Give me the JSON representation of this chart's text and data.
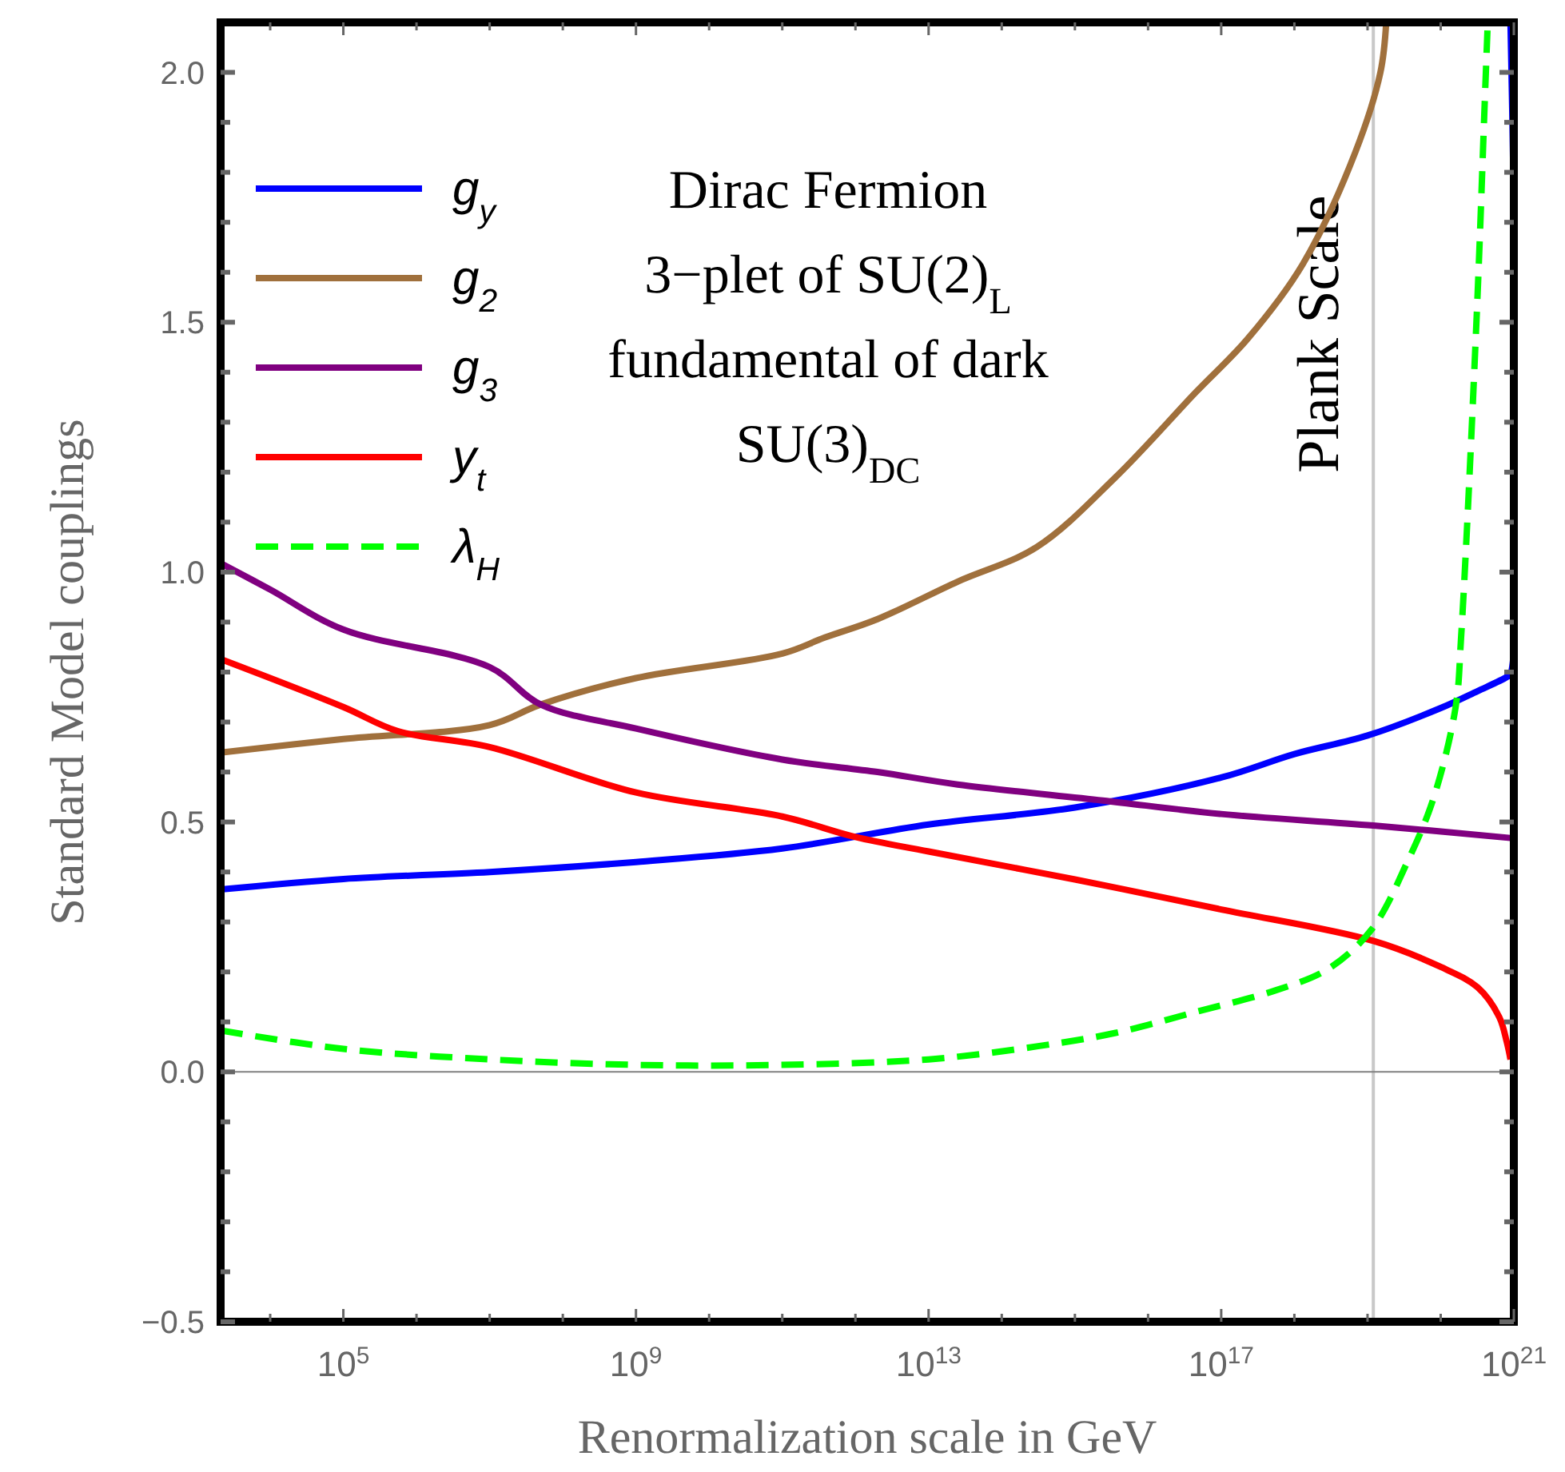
{
  "chart_data": {
    "type": "line",
    "xlabel": "Renormalization scale in GeV",
    "ylabel": "Standard Model couplings",
    "log": "x",
    "xlim": [
      2100,
      1e+21
    ],
    "ylim": [
      -0.5,
      2.1
    ],
    "xticks": [
      {
        "value": 10000.0,
        "label": null
      },
      {
        "value": 100000.0,
        "label": "10$^{5}$"
      },
      {
        "value": 1000000.0,
        "label": null
      },
      {
        "value": 10000000.0,
        "label": null
      },
      {
        "value": 100000000.0,
        "label": null
      },
      {
        "value": 1000000000.0,
        "label": "10$^{9}$"
      },
      {
        "value": 10000000000.0,
        "label": null
      },
      {
        "value": 100000000000.0,
        "label": null
      },
      {
        "value": 1000000000000.0,
        "label": null
      },
      {
        "value": 10000000000000.0,
        "label": "10$^{13}$"
      },
      {
        "value": 100000000000000.0,
        "label": null
      },
      {
        "value": 1000000000000000.0,
        "label": null
      },
      {
        "value": 1e+16,
        "label": null
      },
      {
        "value": 1e+17,
        "label": "10$^{17}$"
      },
      {
        "value": 1e+18,
        "label": null
      },
      {
        "value": 1e+19,
        "label": null
      },
      {
        "value": 1e+20,
        "label": null
      },
      {
        "value": 1e+21,
        "label": "10$^{21}$"
      }
    ],
    "yticks": [
      {
        "value": -0.5,
        "label": "−0.5"
      },
      {
        "value": -0.4,
        "label": null
      },
      {
        "value": -0.3,
        "label": null
      },
      {
        "value": -0.2,
        "label": null
      },
      {
        "value": -0.1,
        "label": null
      },
      {
        "value": 0,
        "label": "0.0"
      },
      {
        "value": 0.1,
        "label": null
      },
      {
        "value": 0.2,
        "label": null
      },
      {
        "value": 0.3,
        "label": null
      },
      {
        "value": 0.4,
        "label": null
      },
      {
        "value": 0.5,
        "label": "0.5"
      },
      {
        "value": 0.6,
        "label": null
      },
      {
        "value": 0.7,
        "label": null
      },
      {
        "value": 0.8,
        "label": null
      },
      {
        "value": 0.9,
        "label": null
      },
      {
        "value": 1.0,
        "label": "1.0"
      },
      {
        "value": 1.1,
        "label": null
      },
      {
        "value": 1.2,
        "label": null
      },
      {
        "value": 1.3,
        "label": null
      },
      {
        "value": 1.4,
        "label": null
      },
      {
        "value": 1.5,
        "label": "1.5"
      },
      {
        "value": 1.6,
        "label": null
      },
      {
        "value": 1.7,
        "label": null
      },
      {
        "value": 1.8,
        "label": null
      },
      {
        "value": 1.9,
        "label": null
      },
      {
        "value": 2.0,
        "label": "2.0"
      }
    ],
    "grid": false,
    "legend": "top left",
    "series": [
      {
        "name": "g$_{y}$",
        "color": "#0000ff",
        "line_style": "solid",
        "x": [
          2100,
          100000.0,
          10000000.0,
          1000000000.0,
          100000000000.0,
          10000000000000.0,
          1000000000000000.0,
          1e+17,
          1e+18,
          1e+19,
          1e+20,
          3.2e+20,
          8e+20,
          9e+20,
          9e+20
        ],
        "values": [
          0.365,
          0.386,
          0.4,
          0.42,
          0.447,
          0.495,
          0.529,
          0.589,
          0.636,
          0.673,
          0.728,
          0.762,
          0.79,
          0.796,
          2.1
        ]
      },
      {
        "name": "g$_{2}$",
        "color": "#a0703c",
        "line_style": "solid",
        "x": [
          2100,
          100000.0,
          10000000.0,
          50000000.0,
          1000000000.0,
          100000000000.0,
          380000000000.0,
          2000000000000.0,
          25000000000000.0,
          300000000000000.0,
          3600000000000000.0,
          4.5e+16,
          2.3e+17,
          1.3e+18,
          6.8e+18,
          1.5e+19,
          1.8e+19
        ],
        "values": [
          0.639,
          0.666,
          0.694,
          0.735,
          0.788,
          0.837,
          0.869,
          0.906,
          0.981,
          1.05,
          1.19,
          1.36,
          1.467,
          1.616,
          1.84,
          2.0,
          2.1
        ]
      },
      {
        "name": "g$_{3}$",
        "color": "#800080",
        "line_style": "solid",
        "x": [
          2100,
          10000.0,
          100000.0,
          10000000.0,
          50000000.0,
          1000000000.0,
          100000000000.0,
          2000000000000.0,
          25000000000000.0,
          2400000000000000.0,
          1e+17,
          1.2e+19,
          9e+20
        ],
        "values": [
          1.018,
          0.965,
          0.885,
          0.81,
          0.735,
          0.687,
          0.625,
          0.6,
          0.575,
          0.543,
          0.516,
          0.493,
          0.468
        ]
      },
      {
        "name": "y$_{t}$",
        "color": "#ff0000",
        "line_style": "solid",
        "x": [
          2100,
          100000.0,
          550000.0,
          10000000.0,
          1000000000.0,
          100000000000.0,
          1000000000000.0,
          10000000000000.0,
          1000000000000000.0,
          1e+17,
          1.2e+19,
          1e+20,
          3.2e+20,
          6.3e+20,
          8e+20,
          9e+20
        ],
        "values": [
          0.826,
          0.73,
          0.682,
          0.65,
          0.559,
          0.511,
          0.47,
          0.441,
          0.385,
          0.325,
          0.262,
          0.21,
          0.169,
          0.11,
          0.06,
          0.025
        ]
      },
      {
        "name": "λ$_{H}$",
        "color": "#00ff00",
        "line_style": "dashed",
        "x": [
          2100,
          100000.0,
          10000000.0,
          1000000000.0,
          100000000000.0,
          10000000000000.0,
          300000000000000.0,
          3600000000000000.0,
          4.5e+16,
          5.5e+17,
          2.9e+18,
          1.15e+19,
          3.5e+19,
          8e+19,
          1.6e+20,
          1.9e+20,
          3.1e+20,
          4e+20,
          4.4e+20
        ],
        "values": [
          0.083,
          0.046,
          0.025,
          0.014,
          0.014,
          0.025,
          0.051,
          0.078,
          0.12,
          0.163,
          0.206,
          0.286,
          0.42,
          0.548,
          0.73,
          0.869,
          1.51,
          1.94,
          2.1
        ]
      }
    ],
    "ref_lines": [
      {
        "axis": "x",
        "value": 1.2e+19,
        "label": "Plank Scale",
        "color": "#c8c8c8"
      },
      {
        "axis": "y",
        "value": 0,
        "color": "#808080"
      }
    ],
    "annotations": [
      "Dirac Fermion",
      "3−plet of SU(2)$_{L}$",
      "fundamental of dark",
      "SU(3)$_{DC}$"
    ]
  }
}
